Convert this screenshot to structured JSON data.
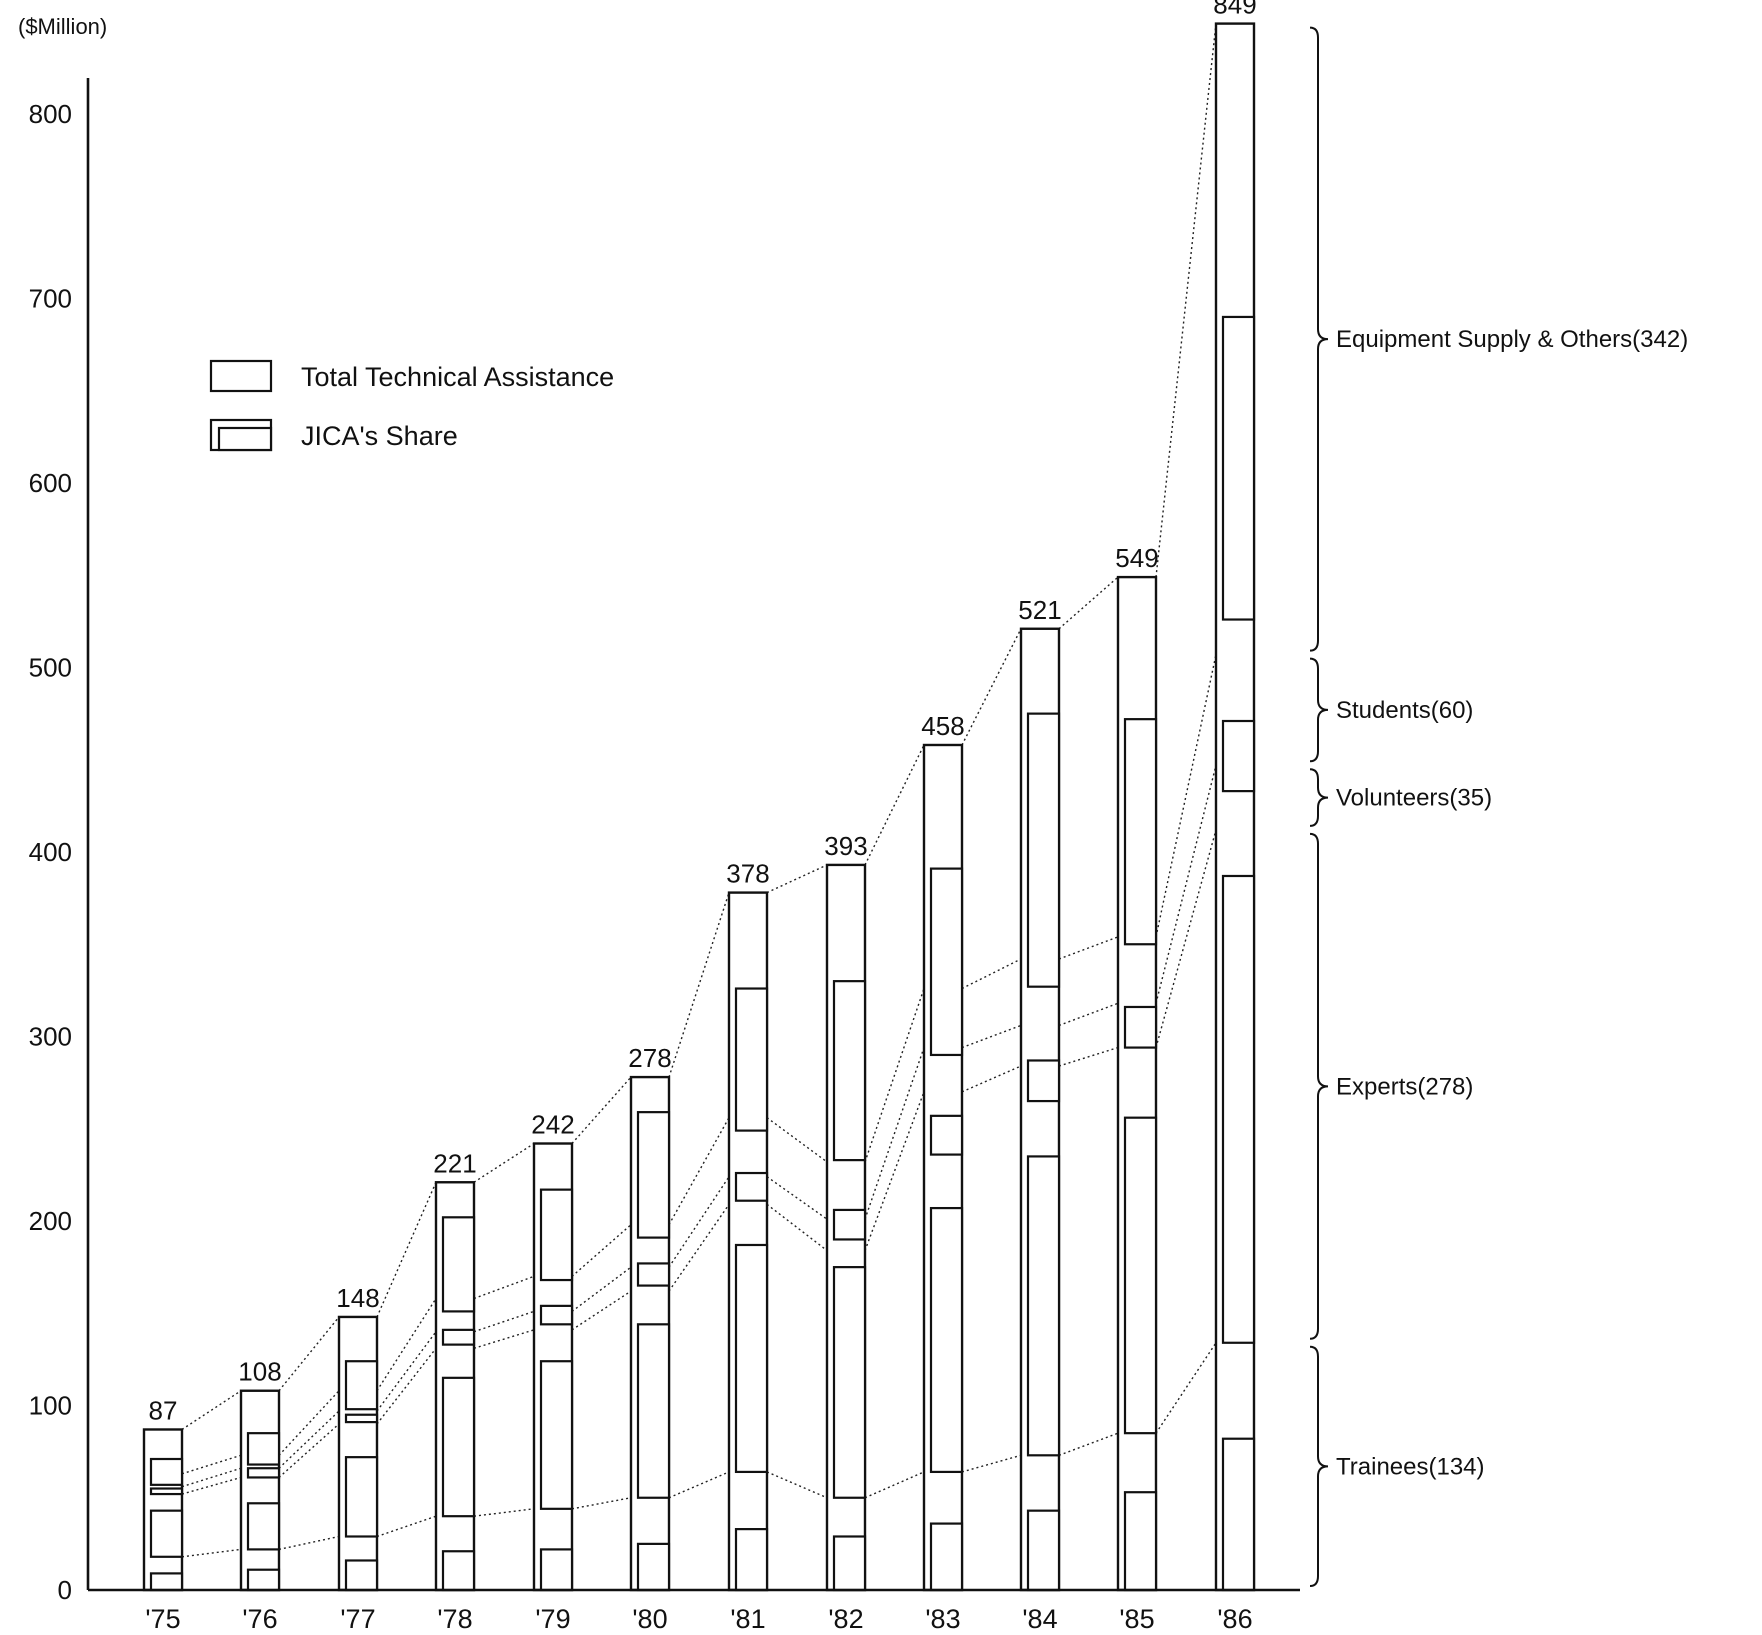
{
  "chart_data": {
    "type": "bar",
    "title": "",
    "ylabel": "($Million)",
    "ylim": [
      0,
      849
    ],
    "yticks": [
      "0",
      "100",
      "200",
      "300",
      "400",
      "500",
      "600",
      "700",
      "800"
    ],
    "categories": [
      "'75",
      "'76",
      "'77",
      "'78",
      "'79",
      "'80",
      "'81",
      "'82",
      "'83",
      "'84",
      "'85",
      "'86"
    ],
    "total_labels": [
      "87",
      "108",
      "148",
      "221",
      "242",
      "278",
      "378",
      "393",
      "458",
      "521",
      "549",
      "849"
    ],
    "totals": [
      87,
      108,
      148,
      221,
      242,
      278,
      378,
      393,
      458,
      521,
      549,
      849
    ],
    "series": [
      {
        "name": "Trainees",
        "values": [
          18,
          22,
          29,
          40,
          44,
          50,
          64,
          50,
          64,
          73,
          85,
          134
        ]
      },
      {
        "name": "Experts",
        "values": [
          34,
          39,
          61,
          91,
          97,
          112,
          145,
          134,
          206,
          211,
          209,
          278
        ]
      },
      {
        "name": "Volunteers",
        "values": [
          4,
          5,
          7,
          9,
          10,
          13,
          15,
          17,
          24,
          22,
          24,
          35
        ]
      },
      {
        "name": "Students",
        "values": [
          7,
          7,
          11,
          18,
          19,
          23,
          32,
          31,
          32,
          36,
          36,
          60
        ]
      },
      {
        "name": "Equipment Supply & Others",
        "values": [
          24,
          35,
          40,
          63,
          72,
          80,
          122,
          161,
          132,
          179,
          195,
          342
        ]
      }
    ],
    "jica_share": [
      [
        [
          0,
          9
        ],
        [
          18,
          43
        ],
        [
          52,
          55
        ],
        [
          57,
          71
        ]
      ],
      [
        [
          0,
          11
        ],
        [
          22,
          47
        ],
        [
          61,
          66
        ],
        [
          68,
          85
        ]
      ],
      [
        [
          0,
          16
        ],
        [
          29,
          72
        ],
        [
          91,
          95
        ],
        [
          98,
          124
        ]
      ],
      [
        [
          0,
          21
        ],
        [
          40,
          115
        ],
        [
          133,
          141
        ],
        [
          151,
          202
        ]
      ],
      [
        [
          0,
          22
        ],
        [
          44,
          124
        ],
        [
          144,
          154
        ],
        [
          168,
          217
        ]
      ],
      [
        [
          0,
          25
        ],
        [
          50,
          144
        ],
        [
          165,
          177
        ],
        [
          191,
          259
        ]
      ],
      [
        [
          0,
          33
        ],
        [
          64,
          187
        ],
        [
          211,
          226
        ],
        [
          249,
          326
        ]
      ],
      [
        [
          0,
          29
        ],
        [
          50,
          175
        ],
        [
          190,
          206
        ],
        [
          233,
          330
        ]
      ],
      [
        [
          0,
          36
        ],
        [
          64,
          207
        ],
        [
          236,
          257
        ],
        [
          290,
          391
        ]
      ],
      [
        [
          0,
          43
        ],
        [
          73,
          235
        ],
        [
          265,
          287
        ],
        [
          327,
          475
        ]
      ],
      [
        [
          0,
          53
        ],
        [
          85,
          256
        ],
        [
          294,
          316
        ],
        [
          350,
          472
        ]
      ],
      [
        [
          0,
          82
        ],
        [
          134,
          387
        ],
        [
          433,
          471
        ],
        [
          526,
          690
        ]
      ]
    ],
    "legend": {
      "position": "top-left",
      "entries": [
        "Total Technical Assistance",
        "JICA's Share"
      ]
    },
    "annotations": [
      {
        "series_index": 4,
        "text": "Equipment Supply & Others(342)"
      },
      {
        "series_index": 3,
        "text": "Students(60)"
      },
      {
        "series_index": 2,
        "text": "Volunteers(35)"
      },
      {
        "series_index": 1,
        "text": "Experts(278)"
      },
      {
        "series_index": 0,
        "text": "Trainees(134)"
      }
    ],
    "grid": false
  }
}
